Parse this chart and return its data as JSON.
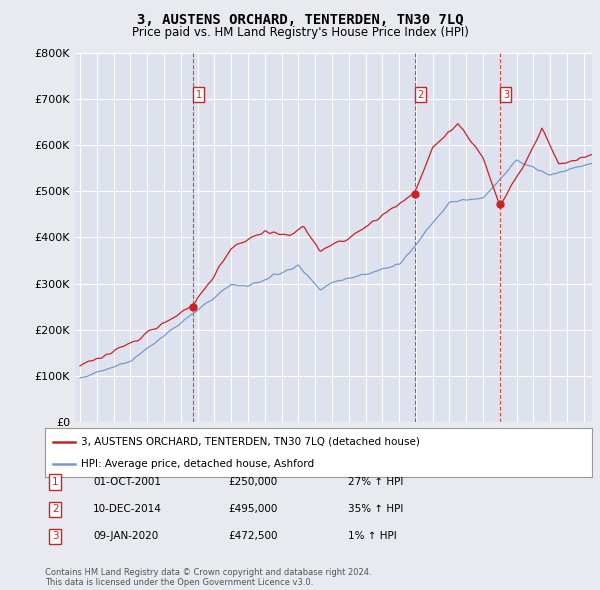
{
  "title": "3, AUSTENS ORCHARD, TENTERDEN, TN30 7LQ",
  "subtitle": "Price paid vs. HM Land Registry's House Price Index (HPI)",
  "ylabel_ticks": [
    "£0",
    "£100K",
    "£200K",
    "£300K",
    "£400K",
    "£500K",
    "£600K",
    "£700K",
    "£800K"
  ],
  "ytick_values": [
    0,
    100000,
    200000,
    300000,
    400000,
    500000,
    600000,
    700000,
    800000
  ],
  "ylim": [
    0,
    800000
  ],
  "xlim_start": 1994.7,
  "xlim_end": 2025.5,
  "sale_dates": [
    2001.75,
    2014.92,
    2020.03
  ],
  "sale_prices": [
    250000,
    495000,
    472500
  ],
  "sale_labels": [
    "1",
    "2",
    "3"
  ],
  "sale_info": [
    {
      "num": "1",
      "date": "01-OCT-2001",
      "price": "£250,000",
      "hpi": "27% ↑ HPI"
    },
    {
      "num": "2",
      "date": "10-DEC-2014",
      "price": "£495,000",
      "hpi": "35% ↑ HPI"
    },
    {
      "num": "3",
      "date": "09-JAN-2020",
      "price": "£472,500",
      "hpi": "1% ↑ HPI"
    }
  ],
  "legend_line1": "3, AUSTENS ORCHARD, TENTERDEN, TN30 7LQ (detached house)",
  "legend_line2": "HPI: Average price, detached house, Ashford",
  "footer": "Contains HM Land Registry data © Crown copyright and database right 2024.\nThis data is licensed under the Open Government Licence v3.0.",
  "red_color": "#cc2222",
  "blue_color": "#7799cc",
  "bg_color": "#e8eaf0",
  "plot_bg": "#dde2ee",
  "grid_color": "#ffffff"
}
